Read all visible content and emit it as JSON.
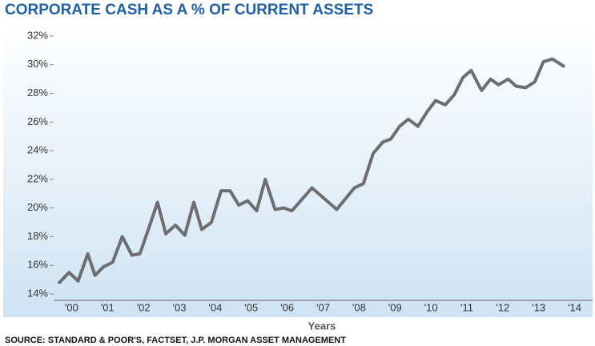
{
  "chart_data": {
    "type": "line",
    "title": "CORPORATE CASH AS A % OF CURRENT ASSETS",
    "x_label": "Years",
    "source": "SOURCE: STANDARD & POOR'S, FACTSET, J.P. MORGAN ASSET MANAGEMENT",
    "xlim": [
      1999.5,
      2014.5
    ],
    "ylim": [
      14,
      32
    ],
    "xticks": [
      {
        "value": 2000,
        "label": "'00"
      },
      {
        "value": 2001,
        "label": "'01"
      },
      {
        "value": 2002,
        "label": "'02"
      },
      {
        "value": 2003,
        "label": "'03"
      },
      {
        "value": 2004,
        "label": "'04"
      },
      {
        "value": 2005,
        "label": "'05"
      },
      {
        "value": 2006,
        "label": "'06"
      },
      {
        "value": 2007,
        "label": "'07"
      },
      {
        "value": 2008,
        "label": "'08"
      },
      {
        "value": 2009,
        "label": "'09"
      },
      {
        "value": 2010,
        "label": "'10"
      },
      {
        "value": 2011,
        "label": "'11"
      },
      {
        "value": 2012,
        "label": "'12"
      },
      {
        "value": 2013,
        "label": "'13"
      },
      {
        "value": 2014,
        "label": "'14"
      }
    ],
    "yticks": [
      {
        "value": 14,
        "label": "14%"
      },
      {
        "value": 16,
        "label": "16%"
      },
      {
        "value": 18,
        "label": "18%"
      },
      {
        "value": 20,
        "label": "20%"
      },
      {
        "value": 22,
        "label": "22%"
      },
      {
        "value": 24,
        "label": "24%"
      },
      {
        "value": 26,
        "label": "26%"
      },
      {
        "value": 28,
        "label": "28%"
      },
      {
        "value": 30,
        "label": "30%"
      },
      {
        "value": 32,
        "label": "32%"
      }
    ],
    "color": "#6d6e71",
    "x": [
      1999.66,
      1999.93,
      2000.18,
      2000.45,
      2000.65,
      2000.89,
      2001.14,
      2001.41,
      2001.68,
      2001.9,
      2002.15,
      2002.39,
      2002.62,
      2002.89,
      2003.15,
      2003.4,
      2003.62,
      2003.89,
      2004.16,
      2004.41,
      2004.65,
      2004.9,
      2005.15,
      2005.39,
      2005.66,
      2005.91,
      2006.13,
      2006.69,
      2007.38,
      2007.87,
      2008.12,
      2008.39,
      2008.66,
      2008.88,
      2009.13,
      2009.37,
      2009.64,
      2009.89,
      2010.13,
      2010.4,
      2010.65,
      2010.89,
      2011.12,
      2011.41,
      2011.66,
      2011.88,
      2012.15,
      2012.37,
      2012.64,
      2012.89,
      2013.13,
      2013.38,
      2013.69
    ],
    "values": [
      14.8,
      15.5,
      14.9,
      16.8,
      15.3,
      15.9,
      16.2,
      18.0,
      16.7,
      16.8,
      18.6,
      20.4,
      18.2,
      18.8,
      18.1,
      20.4,
      18.5,
      19.0,
      21.2,
      21.2,
      20.2,
      20.5,
      19.8,
      22.0,
      19.9,
      20.0,
      19.8,
      21.4,
      19.9,
      21.4,
      21.7,
      23.8,
      24.6,
      24.8,
      25.7,
      26.2,
      25.7,
      26.7,
      27.5,
      27.2,
      27.9,
      29.1,
      29.6,
      28.2,
      29.0,
      28.6,
      29.0,
      28.5,
      28.4,
      28.8,
      30.2,
      30.4,
      29.9
    ]
  }
}
